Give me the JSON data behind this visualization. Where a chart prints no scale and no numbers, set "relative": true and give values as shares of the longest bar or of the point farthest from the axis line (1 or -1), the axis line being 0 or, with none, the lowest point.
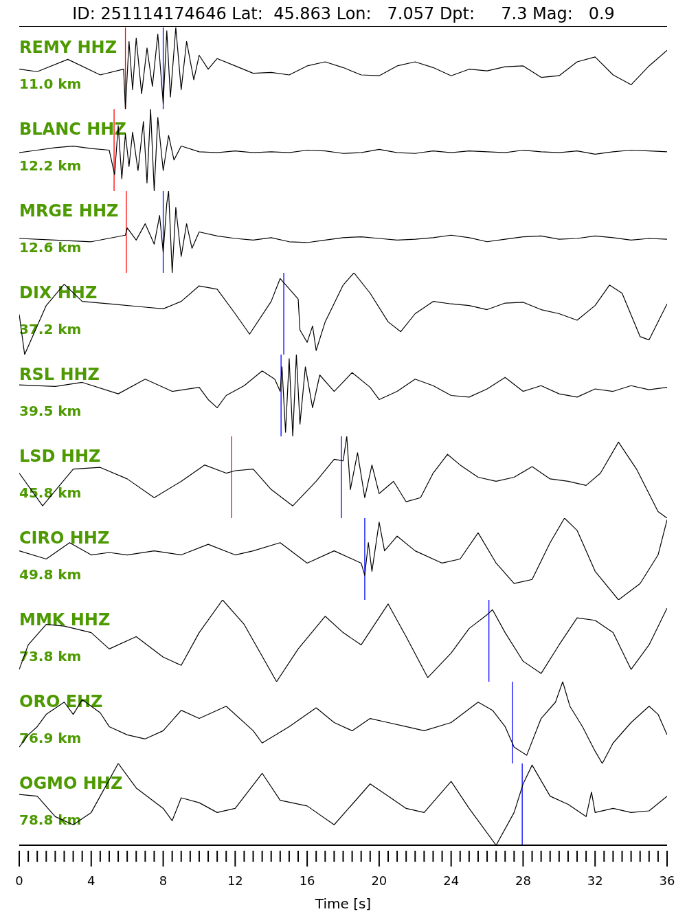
{
  "chart_data": [
    {
      "type": "line",
      "relative": true,
      "title": "ID: 251114174646 Lat:  45.863 Lon:   7.057 Dpt:     7.3 Mag:   0.9",
      "xlim": [
        0,
        36
      ],
      "tick_labels": false,
      "annotations": [
        "REMY HHZ",
        "11.0 km"
      ],
      "ref_lines": [
        {
          "axis": "x",
          "value": 5.9,
          "color": "#ff0000"
        },
        {
          "axis": "x",
          "value": 8.0,
          "color": "#0000ff"
        }
      ],
      "x": [
        0,
        1,
        2.7,
        4.5,
        5.8,
        5.9,
        6.1,
        6.3,
        6.5,
        6.8,
        7.1,
        7.4,
        7.7,
        8.0,
        8.2,
        8.4,
        8.7,
        9,
        9.3,
        9.7,
        10,
        10.5,
        11,
        12,
        13,
        14,
        15,
        16,
        17,
        18,
        19,
        20,
        21,
        22,
        23,
        24,
        25,
        26,
        27,
        28,
        29,
        30,
        31,
        32,
        33,
        34,
        35,
        36
      ],
      "series": [
        {
          "color": "#000000",
          "values": [
            0.49,
            0.46,
            0.61,
            0.42,
            0.49,
            0,
            0.83,
            0.24,
            0.87,
            0.19,
            0.75,
            0.28,
            0.92,
            0.07,
            0.96,
            0.15,
            1,
            0.24,
            0.83,
            0.36,
            0.66,
            0.49,
            0.62,
            0.53,
            0.44,
            0.45,
            0.42,
            0.53,
            0.58,
            0.51,
            0.42,
            0.41,
            0.53,
            0.58,
            0.51,
            0.41,
            0.49,
            0.47,
            0.52,
            0.53,
            0.39,
            0.41,
            0.58,
            0.64,
            0.42,
            0.3,
            0.53,
            0.72
          ]
        }
      ]
    },
    {
      "type": "line",
      "relative": true,
      "xlim": [
        0,
        36
      ],
      "tick_labels": false,
      "annotations": [
        "BLANC HHZ",
        "12.2 km"
      ],
      "ref_lines": [
        {
          "axis": "x",
          "value": 5.27,
          "color": "#ff0000"
        }
      ],
      "x": [
        0,
        1,
        2,
        3,
        4,
        5,
        5.3,
        5.5,
        5.7,
        5.9,
        6.1,
        6.3,
        6.6,
        6.9,
        7.1,
        7.3,
        7.5,
        7.7,
        8,
        8.3,
        8.6,
        9,
        10,
        11,
        12,
        13,
        14,
        15,
        16,
        17,
        18,
        19,
        20,
        21,
        22,
        23,
        24,
        25,
        26,
        27,
        28,
        29,
        30,
        31,
        32,
        33,
        34,
        35,
        36
      ],
      "series": [
        {
          "color": "#000000",
          "values": [
            0.47,
            0.5,
            0.53,
            0.55,
            0.52,
            0.5,
            0.2,
            0.8,
            0.15,
            0.7,
            0.3,
            0.72,
            0.25,
            0.85,
            0.1,
            1,
            0,
            0.9,
            0.25,
            0.68,
            0.38,
            0.55,
            0.48,
            0.47,
            0.49,
            0.47,
            0.48,
            0.47,
            0.5,
            0.49,
            0.46,
            0.47,
            0.51,
            0.47,
            0.46,
            0.49,
            0.47,
            0.49,
            0.48,
            0.47,
            0.5,
            0.48,
            0.47,
            0.49,
            0.45,
            0.48,
            0.5,
            0.49,
            0.48
          ]
        }
      ]
    },
    {
      "type": "line",
      "relative": true,
      "xlim": [
        0,
        36
      ],
      "tick_labels": false,
      "annotations": [
        "MRGE HHZ",
        "12.6 km"
      ],
      "ref_lines": [
        {
          "axis": "x",
          "value": 5.95,
          "color": "#ff0000"
        },
        {
          "axis": "x",
          "value": 8.0,
          "color": "#0000ff"
        }
      ],
      "x": [
        0,
        2,
        4,
        5.9,
        6,
        6.5,
        7,
        7.5,
        7.8,
        8,
        8.2,
        8.3,
        8.5,
        8.7,
        9,
        9.3,
        9.6,
        10,
        11,
        12,
        13,
        14,
        15,
        16,
        17,
        18,
        19,
        20,
        21,
        22,
        23,
        24,
        25,
        26,
        27,
        28,
        29,
        30,
        31,
        32,
        33,
        34,
        35,
        36
      ],
      "series": [
        {
          "color": "#000000",
          "values": [
            0.42,
            0.4,
            0.38,
            0.46,
            0.55,
            0.4,
            0.6,
            0.35,
            0.7,
            0.25,
            0.85,
            1,
            0,
            0.8,
            0.2,
            0.6,
            0.3,
            0.5,
            0.45,
            0.42,
            0.4,
            0.43,
            0.38,
            0.37,
            0.4,
            0.43,
            0.44,
            0.42,
            0.4,
            0.41,
            0.43,
            0.46,
            0.43,
            0.38,
            0.41,
            0.44,
            0.45,
            0.41,
            0.42,
            0.45,
            0.43,
            0.4,
            0.42,
            0.41
          ]
        }
      ]
    },
    {
      "type": "line",
      "relative": true,
      "xlim": [
        0,
        36
      ],
      "tick_labels": false,
      "annotations": [
        "DIX HHZ",
        "37.2 km"
      ],
      "ref_lines": [
        {
          "axis": "x",
          "value": 14.7,
          "color": "#0000ff"
        }
      ],
      "x": [
        0,
        0.3,
        1.5,
        2.5,
        3.5,
        5,
        7,
        8,
        9,
        10,
        11,
        12,
        12.8,
        14,
        14.5,
        15.5,
        15.6,
        16,
        16.3,
        16.5,
        17,
        18,
        18.6,
        19.5,
        20.5,
        21.2,
        22,
        23,
        24,
        25,
        26,
        27,
        28,
        29,
        30,
        31,
        32,
        32.8,
        33.5,
        34.5,
        35,
        36
      ],
      "series": [
        {
          "color": "#000000",
          "values": [
            0.49,
            0,
            0.6,
            0.86,
            0.65,
            0.62,
            0.58,
            0.56,
            0.65,
            0.84,
            0.8,
            0.5,
            0.25,
            0.65,
            0.93,
            0.68,
            0.3,
            0.15,
            0.35,
            0.05,
            0.4,
            0.85,
            1,
            0.75,
            0.4,
            0.28,
            0.5,
            0.65,
            0.62,
            0.6,
            0.55,
            0.63,
            0.64,
            0.55,
            0.5,
            0.42,
            0.6,
            0.85,
            0.75,
            0.22,
            0.18,
            0.62
          ]
        }
      ]
    },
    {
      "type": "line",
      "relative": true,
      "xlim": [
        0,
        36
      ],
      "tick_labels": false,
      "annotations": [
        "RSL HHZ",
        "39.5 km"
      ],
      "ref_lines": [
        {
          "axis": "x",
          "value": 14.55,
          "color": "#0000ff"
        }
      ],
      "x": [
        0,
        2,
        3.5,
        5.5,
        7,
        8.5,
        10,
        10.5,
        11,
        11.5,
        12.5,
        13.5,
        14.2,
        14.5,
        14.6,
        14.8,
        15,
        15.2,
        15.4,
        15.6,
        15.9,
        16.3,
        16.7,
        17.5,
        18.5,
        19.5,
        20,
        21,
        22,
        23,
        24,
        25,
        26,
        27,
        28,
        29,
        30,
        31,
        32,
        33,
        34,
        35,
        36
      ],
      "series": [
        {
          "color": "#000000",
          "values": [
            0.63,
            0.61,
            0.66,
            0.52,
            0.7,
            0.55,
            0.6,
            0.45,
            0.35,
            0.5,
            0.62,
            0.8,
            0.7,
            0.55,
            0.85,
            0.05,
            0.95,
            0,
            1,
            0.15,
            0.85,
            0.35,
            0.75,
            0.55,
            0.78,
            0.6,
            0.45,
            0.55,
            0.7,
            0.62,
            0.5,
            0.48,
            0.58,
            0.72,
            0.55,
            0.62,
            0.52,
            0.48,
            0.58,
            0.55,
            0.62,
            0.57,
            0.6
          ]
        }
      ]
    },
    {
      "type": "line",
      "relative": true,
      "xlim": [
        0,
        36
      ],
      "tick_labels": false,
      "annotations": [
        "LSD HHZ",
        "45.8 km"
      ],
      "ref_lines": [
        {
          "axis": "x",
          "value": 11.8,
          "color": "#ff0000"
        },
        {
          "axis": "x",
          "value": 17.9,
          "color": "#0000ff"
        }
      ],
      "x": [
        0,
        1.3,
        3,
        4.5,
        6,
        7.5,
        9,
        10.3,
        11.5,
        12,
        13,
        14,
        15.2,
        16.5,
        17.5,
        18,
        18.2,
        18.4,
        18.8,
        19.2,
        19.6,
        20,
        20.8,
        21.5,
        22.3,
        23,
        23.8,
        24.5,
        25.5,
        26.5,
        27.5,
        28.5,
        29.5,
        30.5,
        31.5,
        32.3,
        33.3,
        34.3,
        35.5,
        36
      ],
      "series": [
        {
          "color": "#000000",
          "values": [
            0.55,
            0.15,
            0.6,
            0.62,
            0.48,
            0.25,
            0.45,
            0.65,
            0.55,
            0.58,
            0.6,
            0.35,
            0.15,
            0.45,
            0.72,
            0.7,
            1,
            0.35,
            0.8,
            0.25,
            0.65,
            0.3,
            0.45,
            0.2,
            0.25,
            0.55,
            0.78,
            0.65,
            0.5,
            0.45,
            0.5,
            0.63,
            0.48,
            0.45,
            0.4,
            0.55,
            0.93,
            0.6,
            0.08,
            0
          ]
        }
      ]
    },
    {
      "type": "line",
      "relative": true,
      "xlim": [
        0,
        36
      ],
      "tick_labels": false,
      "annotations": [
        "CIRO HHZ",
        "49.8 km"
      ],
      "ref_lines": [
        {
          "axis": "x",
          "value": 19.2,
          "color": "#0000ff"
        }
      ],
      "x": [
        0,
        1.5,
        2.8,
        4,
        5,
        6,
        7.5,
        9,
        10.5,
        12,
        13,
        14.5,
        16,
        17.5,
        19,
        19.2,
        19.4,
        19.6,
        20,
        20.3,
        21,
        22,
        23.5,
        24.5,
        25.5,
        26.5,
        27.5,
        28.5,
        29.5,
        30.3,
        31,
        32,
        33.3,
        34.5,
        35.5,
        36
      ],
      "series": [
        {
          "color": "#000000",
          "values": [
            0.6,
            0.5,
            0.7,
            0.55,
            0.58,
            0.55,
            0.6,
            0.55,
            0.68,
            0.55,
            0.6,
            0.7,
            0.45,
            0.6,
            0.45,
            0.3,
            0.7,
            0.35,
            0.95,
            0.6,
            0.78,
            0.6,
            0.45,
            0.5,
            0.82,
            0.45,
            0.2,
            0.25,
            0.7,
            1,
            0.85,
            0.35,
            0,
            0.2,
            0.55,
            0.98
          ]
        }
      ]
    },
    {
      "type": "line",
      "relative": true,
      "xlim": [
        0,
        36
      ],
      "tick_labels": false,
      "annotations": [
        "MMK HHZ",
        "73.8 km"
      ],
      "ref_lines": [
        {
          "axis": "x",
          "value": 26.1,
          "color": "#0000ff"
        }
      ],
      "x": [
        0,
        0.5,
        1.5,
        2.5,
        4,
        5,
        6.5,
        8,
        9,
        10,
        11.3,
        12.5,
        14.3,
        15.5,
        17,
        18,
        19,
        20.5,
        21.5,
        22.7,
        24,
        25,
        26,
        26.3,
        27,
        28,
        29,
        30,
        31,
        32,
        33,
        34,
        35,
        36
      ],
      "series": [
        {
          "color": "#000000",
          "values": [
            0.15,
            0.45,
            0.7,
            0.68,
            0.6,
            0.4,
            0.55,
            0.3,
            0.2,
            0.6,
            1,
            0.7,
            0,
            0.4,
            0.8,
            0.6,
            0.45,
            0.95,
            0.55,
            0.05,
            0.35,
            0.65,
            0.82,
            0.88,
            0.6,
            0.25,
            0.1,
            0.45,
            0.78,
            0.75,
            0.6,
            0.15,
            0.45,
            0.9
          ]
        }
      ]
    },
    {
      "type": "line",
      "relative": true,
      "xlim": [
        0,
        36
      ],
      "tick_labels": false,
      "annotations": [
        "ORO EHZ",
        "76.9 km"
      ],
      "ref_lines": [
        {
          "axis": "x",
          "value": 27.4,
          "color": "#0000ff"
        }
      ],
      "x": [
        0,
        0.5,
        1,
        1.5,
        2.5,
        3,
        3.5,
        4.5,
        5,
        6,
        7,
        8,
        9,
        10,
        11.5,
        13,
        13.5,
        15,
        16.5,
        17.5,
        18.5,
        19.5,
        20.5,
        21.5,
        22.5,
        24,
        25.5,
        26.3,
        27,
        27.5,
        28.2,
        29,
        29.8,
        30.2,
        30.6,
        31.3,
        32,
        32.4,
        33,
        34,
        35,
        35.5,
        36
      ],
      "series": [
        {
          "color": "#000000",
          "values": [
            0.2,
            0.35,
            0.45,
            0.6,
            0.75,
            0.6,
            0.78,
            0.62,
            0.45,
            0.35,
            0.3,
            0.4,
            0.65,
            0.55,
            0.7,
            0.4,
            0.25,
            0.45,
            0.68,
            0.5,
            0.4,
            0.55,
            0.5,
            0.45,
            0.4,
            0.5,
            0.75,
            0.65,
            0.45,
            0.2,
            0.1,
            0.55,
            0.75,
            1,
            0.7,
            0.45,
            0.15,
            0,
            0.25,
            0.5,
            0.7,
            0.6,
            0.35
          ]
        }
      ]
    },
    {
      "type": "line",
      "relative": true,
      "xlim": [
        0,
        36
      ],
      "tick_labels": "x",
      "xlabel": "Time [s]",
      "annotations": [
        "OGMO HHZ",
        "78.8 km"
      ],
      "ref_lines": [
        {
          "axis": "x",
          "value": 27.95,
          "color": "#0000ff"
        }
      ],
      "xticks": [
        0,
        {
          "value": 0.5,
          "label": null
        },
        {
          "value": 1,
          "label": null
        },
        {
          "value": 1.5,
          "label": null
        },
        {
          "value": 2,
          "label": null
        },
        {
          "value": 2.5,
          "label": null
        },
        {
          "value": 3,
          "label": null
        },
        {
          "value": 3.5,
          "label": null
        },
        4,
        {
          "value": 4.5,
          "label": null
        },
        {
          "value": 5,
          "label": null
        },
        {
          "value": 5.5,
          "label": null
        },
        {
          "value": 6,
          "label": null
        },
        {
          "value": 6.5,
          "label": null
        },
        {
          "value": 7,
          "label": null
        },
        {
          "value": 7.5,
          "label": null
        },
        8,
        {
          "value": 8.5,
          "label": null
        },
        {
          "value": 9,
          "label": null
        },
        {
          "value": 9.5,
          "label": null
        },
        {
          "value": 10,
          "label": null
        },
        {
          "value": 10.5,
          "label": null
        },
        {
          "value": 11,
          "label": null
        },
        {
          "value": 11.5,
          "label": null
        },
        12,
        {
          "value": 12.5,
          "label": null
        },
        {
          "value": 13,
          "label": null
        },
        {
          "value": 13.5,
          "label": null
        },
        {
          "value": 14,
          "label": null
        },
        {
          "value": 14.5,
          "label": null
        },
        {
          "value": 15,
          "label": null
        },
        {
          "value": 15.5,
          "label": null
        },
        16,
        {
          "value": 16.5,
          "label": null
        },
        {
          "value": 17,
          "label": null
        },
        {
          "value": 17.5,
          "label": null
        },
        {
          "value": 18,
          "label": null
        },
        {
          "value": 18.5,
          "label": null
        },
        {
          "value": 19,
          "label": null
        },
        {
          "value": 19.5,
          "label": null
        },
        20,
        {
          "value": 20.5,
          "label": null
        },
        {
          "value": 21,
          "label": null
        },
        {
          "value": 21.5,
          "label": null
        },
        {
          "value": 22,
          "label": null
        },
        {
          "value": 22.5,
          "label": null
        },
        {
          "value": 23,
          "label": null
        },
        {
          "value": 23.5,
          "label": null
        },
        24,
        {
          "value": 24.5,
          "label": null
        },
        {
          "value": 25,
          "label": null
        },
        {
          "value": 25.5,
          "label": null
        },
        {
          "value": 26,
          "label": null
        },
        {
          "value": 26.5,
          "label": null
        },
        {
          "value": 27,
          "label": null
        },
        {
          "value": 27.5,
          "label": null
        },
        28,
        {
          "value": 28.5,
          "label": null
        },
        {
          "value": 29,
          "label": null
        },
        {
          "value": 29.5,
          "label": null
        },
        {
          "value": 30,
          "label": null
        },
        {
          "value": 30.5,
          "label": null
        },
        {
          "value": 31,
          "label": null
        },
        {
          "value": 31.5,
          "label": null
        },
        32,
        {
          "value": 32.5,
          "label": null
        },
        {
          "value": 33,
          "label": null
        },
        {
          "value": 33.5,
          "label": null
        },
        {
          "value": 34,
          "label": null
        },
        {
          "value": 34.5,
          "label": null
        },
        {
          "value": 35,
          "label": null
        },
        {
          "value": 35.5,
          "label": null
        },
        36
      ],
      "x": [
        0,
        1,
        2,
        3,
        4,
        4.5,
        5.5,
        6.5,
        8,
        8.5,
        9,
        10,
        11,
        12,
        13.5,
        14.5,
        16,
        17.5,
        19.5,
        20.5,
        21.5,
        22.5,
        24,
        25,
        26.5,
        27.5,
        28,
        28.5,
        29.5,
        30.5,
        31.5,
        31.8,
        32,
        33,
        34,
        35,
        36
      ],
      "series": [
        {
          "color": "#000000",
          "values": [
            0.62,
            0.6,
            0.35,
            0.25,
            0.4,
            0.6,
            1,
            0.7,
            0.45,
            0.3,
            0.58,
            0.52,
            0.4,
            0.45,
            0.88,
            0.55,
            0.48,
            0.25,
            0.75,
            0.6,
            0.45,
            0.4,
            0.78,
            0.45,
            0,
            0.4,
            0.75,
            0.98,
            0.6,
            0.5,
            0.35,
            0.65,
            0.4,
            0.45,
            0.4,
            0.42,
            0.6
          ]
        }
      ]
    }
  ]
}
